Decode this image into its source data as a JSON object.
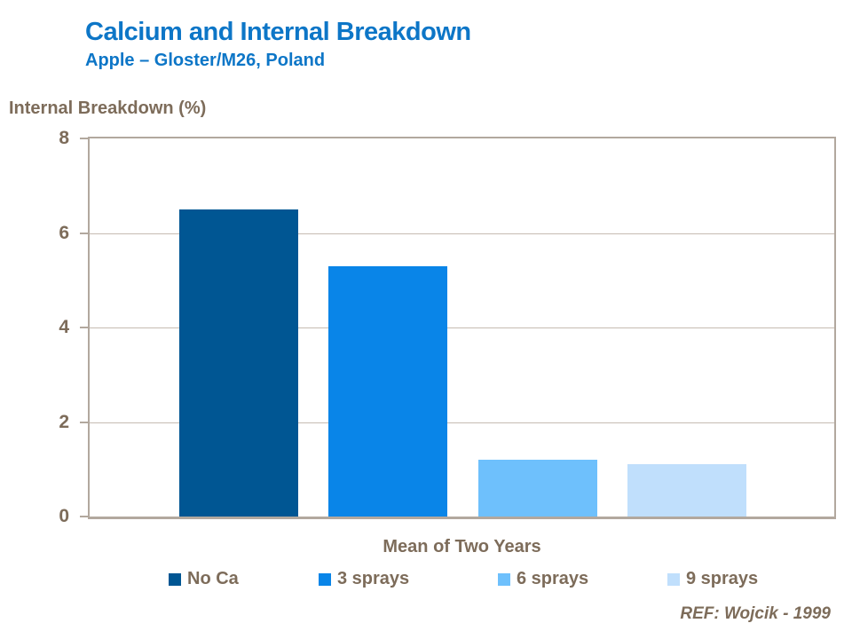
{
  "chart_data": {
    "type": "bar",
    "title": "Calcium and Internal Breakdown",
    "subtitle": "Apple – Gloster/M26, Poland",
    "ylabel": "Internal Breakdown (%)",
    "xlabel": "Mean of Two Years",
    "categories": [
      "Mean of Two Years"
    ],
    "series": [
      {
        "name": "No Ca",
        "values": [
          6.5
        ],
        "color": "#005693"
      },
      {
        "name": "3 sprays",
        "values": [
          5.3
        ],
        "color": "#0985e8"
      },
      {
        "name": "6 sprays",
        "values": [
          1.2
        ],
        "color": "#6ec0fc"
      },
      {
        "name": "9 sprays",
        "values": [
          1.1
        ],
        "color": "#c0dffc"
      }
    ],
    "ylim": [
      0,
      8
    ],
    "yticks": [
      0,
      2,
      4,
      6,
      8
    ],
    "gridlines": [
      2,
      4,
      6
    ],
    "grid": true,
    "legend_position": "bottom"
  },
  "colors": {
    "title_blue": "#0d76c7",
    "axis_text_brown": "#7d6c5a",
    "axis_line": "#b2a89e",
    "gridline": "#c6bcb2"
  },
  "footer": {
    "ref": "REF: Wojcik - 1999"
  }
}
